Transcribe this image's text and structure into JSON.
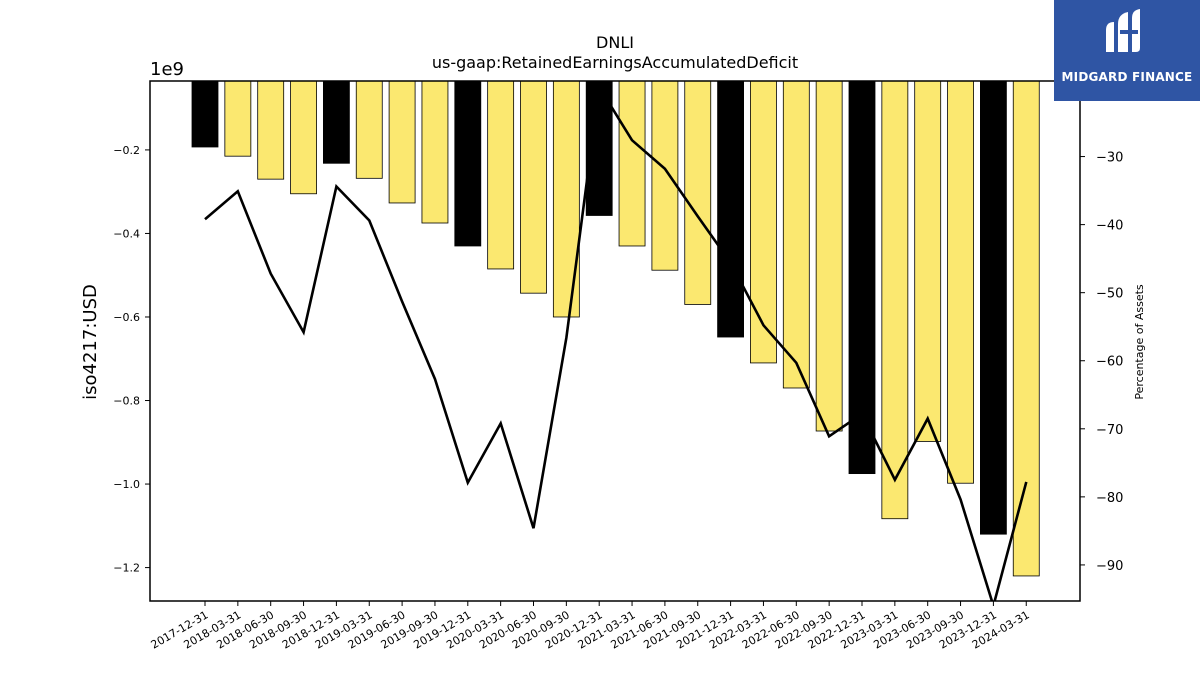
{
  "chart_data": {
    "type": "bar",
    "title": "DNLI",
    "subtitle": "us-gaap:RetainedEarningsAccumulatedDeficit",
    "ylabel": "iso4217:USD",
    "y_offset_label": "1e9",
    "y2label": "Percentage of Assets",
    "categories": [
      "2017-12-31",
      "2018-03-31",
      "2018-06-30",
      "2018-09-30",
      "2018-12-31",
      "2019-03-31",
      "2019-06-30",
      "2019-09-30",
      "2019-12-31",
      "2020-03-31",
      "2020-06-30",
      "2020-09-30",
      "2020-12-31",
      "2021-03-31",
      "2021-06-30",
      "2021-09-30",
      "2021-12-31",
      "2022-03-31",
      "2022-06-30",
      "2022-09-30",
      "2022-12-31",
      "2023-03-31",
      "2023-06-30",
      "2023-09-30",
      "2023-12-31",
      "2024-03-31"
    ],
    "series": [
      {
        "values": [
          -0.193,
          -0.215,
          -0.27,
          -0.305,
          -0.232,
          -0.268,
          -0.327,
          -0.375,
          -0.43,
          -0.485,
          -0.543,
          -0.6,
          -0.357,
          -0.43,
          -0.488,
          -0.57,
          -0.648,
          -0.71,
          -0.77,
          -0.873,
          -0.975,
          -1.083,
          -0.898,
          -0.998,
          -1.12,
          -1.22
        ],
        "annual_flags": [
          true,
          false,
          false,
          false,
          true,
          false,
          false,
          false,
          true,
          false,
          false,
          false,
          true,
          false,
          false,
          false,
          true,
          false,
          false,
          false,
          true,
          false,
          false,
          false,
          true,
          false
        ]
      },
      {
        "axis": "right",
        "values": [
          -39.2,
          -35.1,
          -47.2,
          -55.8,
          -34.4,
          -39.4,
          -51.3,
          -62.7,
          -77.9,
          -69.2,
          -84.6,
          -56.6,
          -19.8,
          -27.6,
          -31.8,
          -38.8,
          -45.6,
          -54.8,
          -60.3,
          -71.1,
          -67.8,
          -77.5,
          -68.5,
          -80.4,
          -96.0,
          -77.8
        ]
      }
    ],
    "ylim": [
      -1.28,
      -0.035
    ],
    "y2lim": [
      -95.3,
      -18.9
    ],
    "yticks": [
      -0.2,
      -0.4,
      -0.6,
      -0.8,
      -1.0,
      -1.2
    ],
    "y2ticks": [
      -30,
      -40,
      -50,
      -60,
      -70,
      -80,
      -90
    ],
    "colors": {
      "annual_bar": "#000000",
      "quarter_bar": "#fbe870",
      "bar_edge": "#000000",
      "line": "#000000",
      "axis": "#000000"
    },
    "grid": false
  },
  "logo": {
    "text": "MIDGARD FINANCE",
    "bg": "#2f55a4"
  }
}
